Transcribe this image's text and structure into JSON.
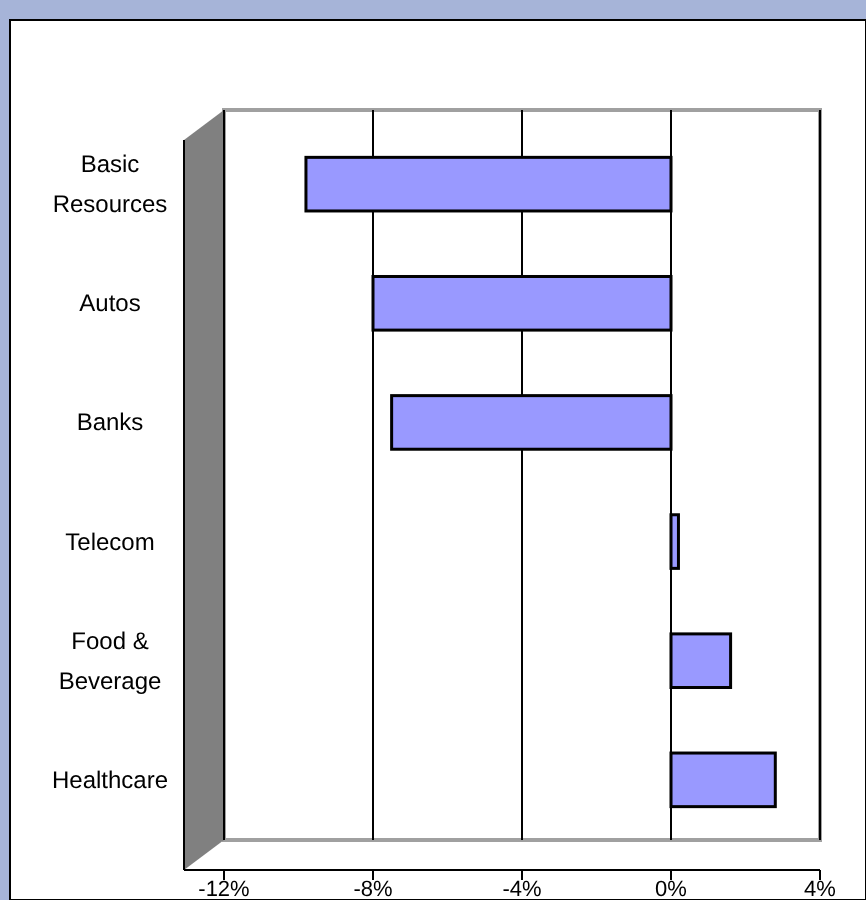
{
  "chart_data": {
    "type": "bar",
    "orientation": "horizontal",
    "categories": [
      "Basic Resources",
      "Autos",
      "Banks",
      "Telecom",
      "Food & Beverage",
      "Healthcare"
    ],
    "values": [
      -9.8,
      -8.0,
      -7.5,
      0.2,
      1.6,
      2.8
    ],
    "color": "#9999ff",
    "xlim": [
      -12,
      4
    ],
    "xticks": [
      {
        "value": -12,
        "label": "-12%"
      },
      {
        "value": -8,
        "label": "-8%"
      },
      {
        "value": -4,
        "label": "-4%"
      },
      {
        "value": 0,
        "label": "0%"
      },
      {
        "value": 4,
        "label": "4%"
      }
    ],
    "grid": "x"
  }
}
